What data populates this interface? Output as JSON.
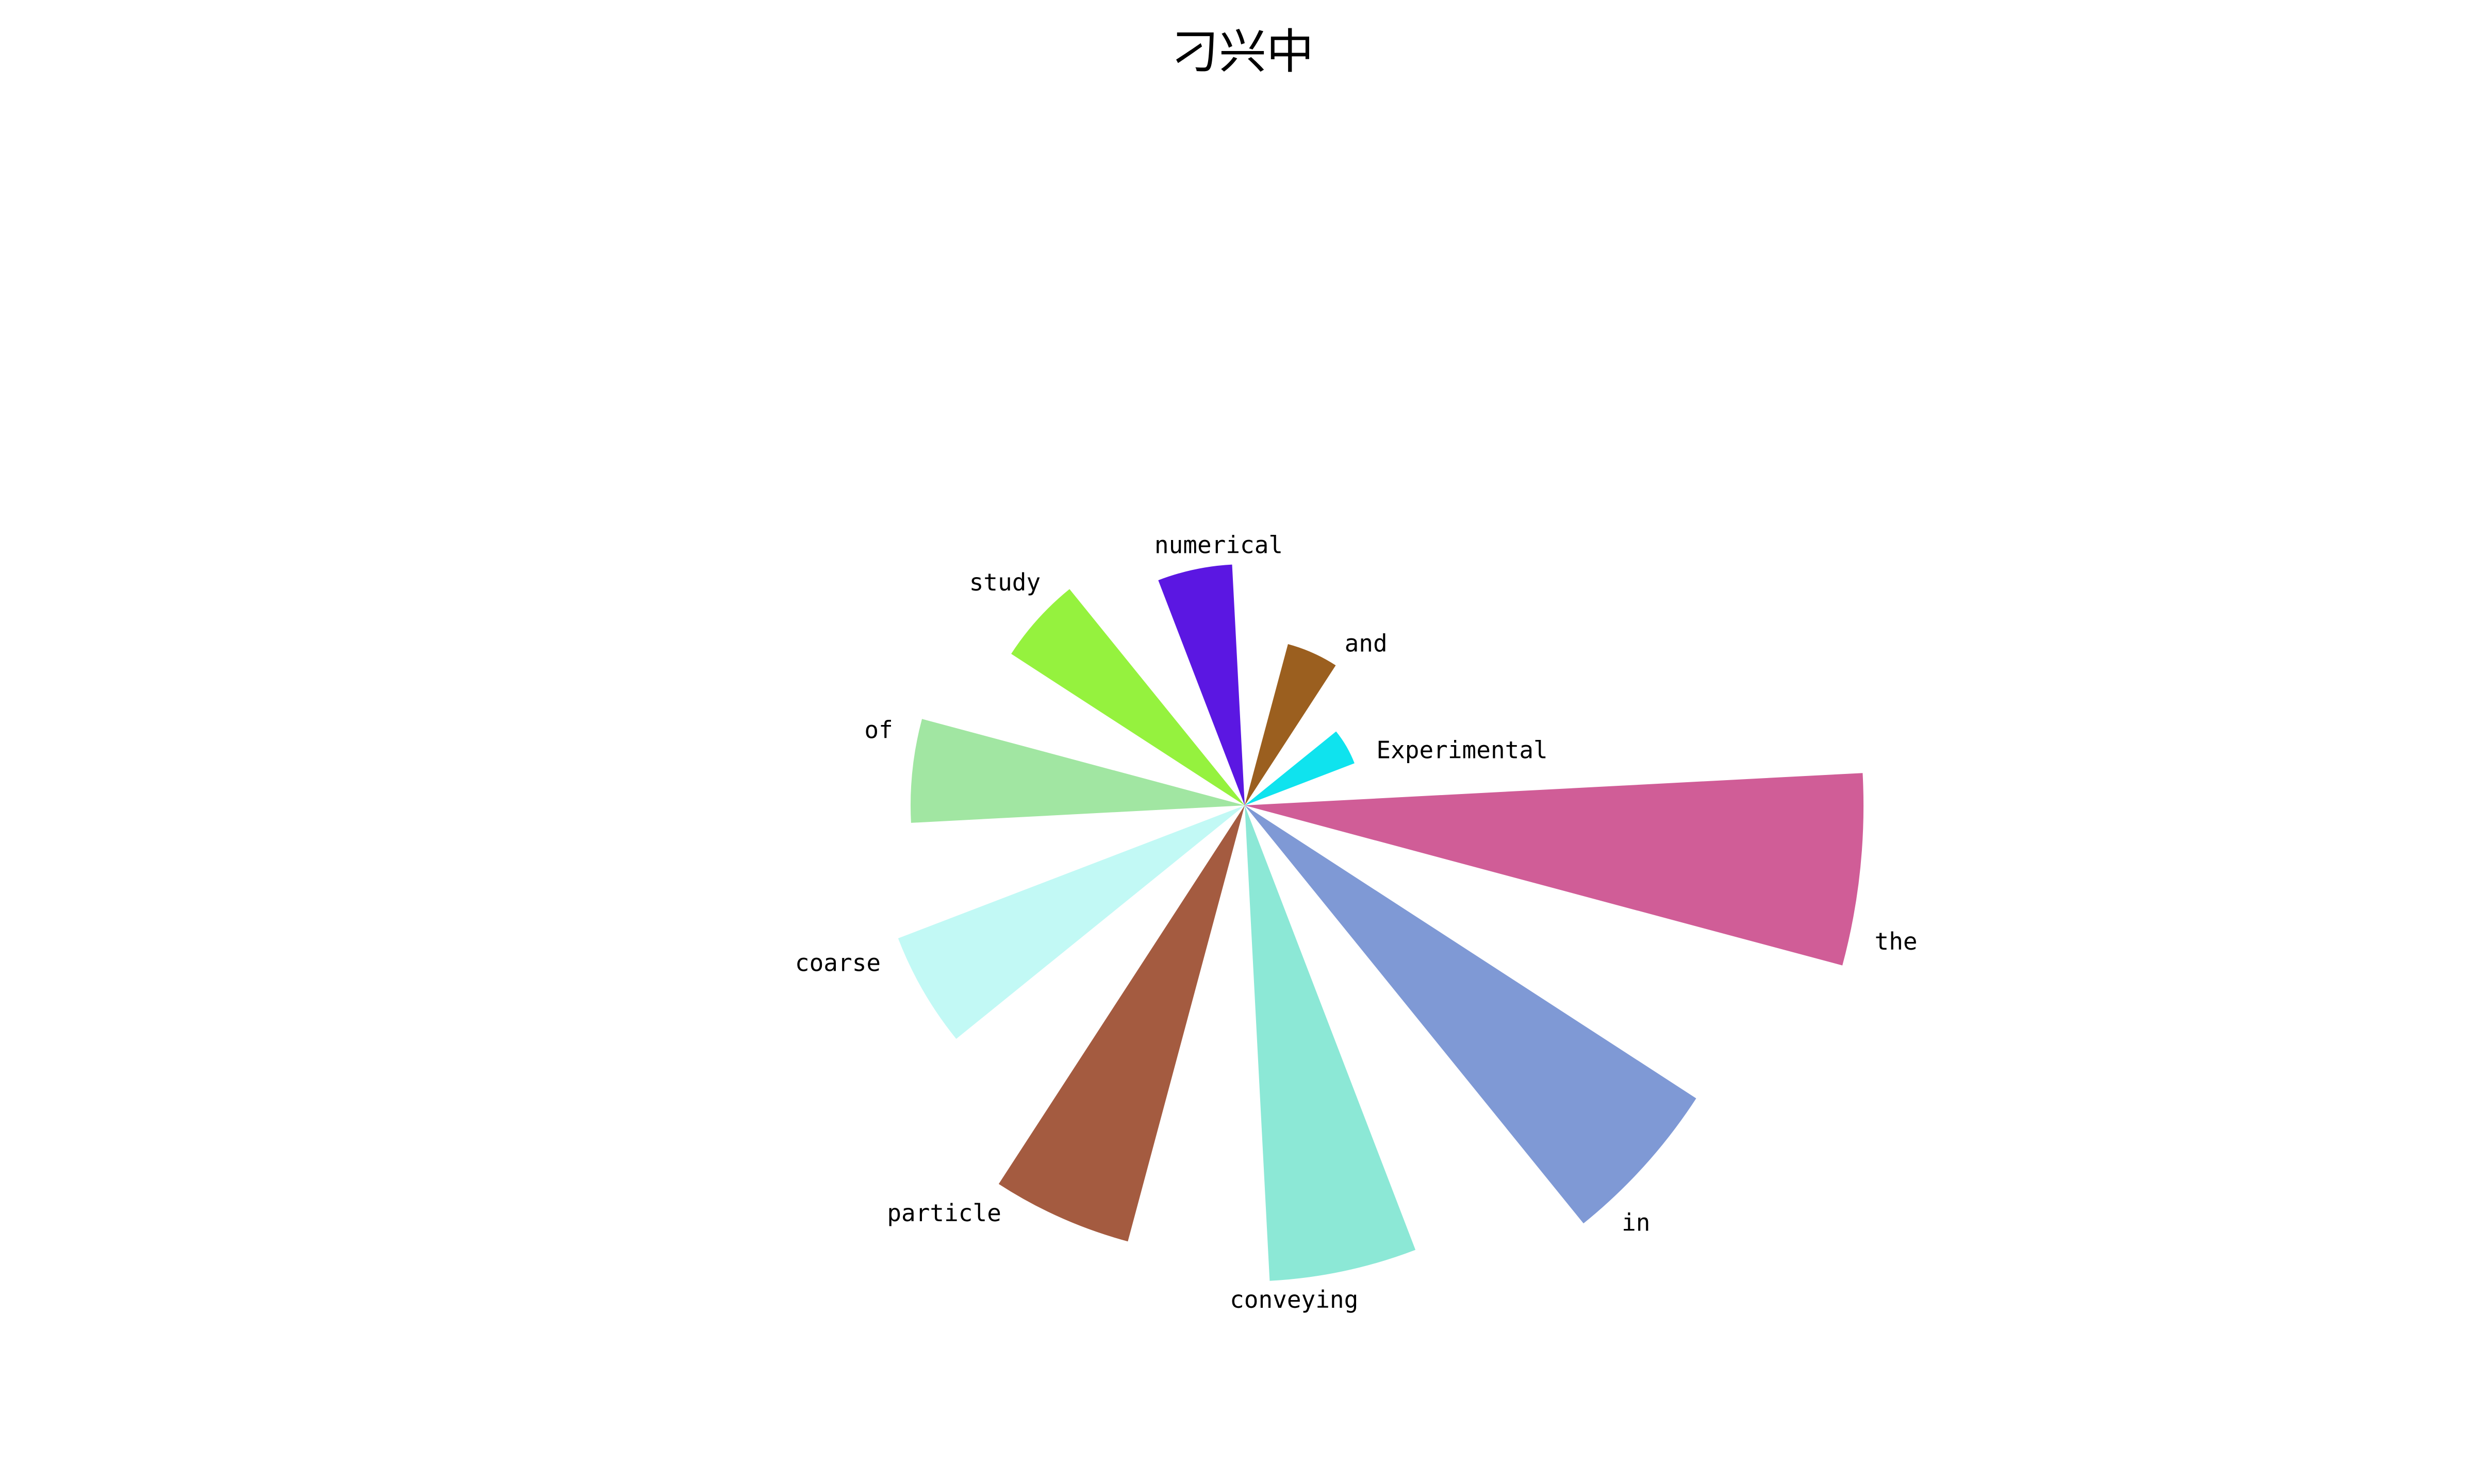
{
  "chart_data": {
    "type": "bar",
    "subtype": "polar-rose",
    "title": "刁兴中",
    "grid": false,
    "legend": "none",
    "rlim": [
      0,
      1.0
    ],
    "categories": [
      "Experimental",
      "and",
      "numerical",
      "study",
      "of",
      "coarse",
      "particle",
      "conveying",
      "in",
      "the"
    ],
    "values": [
      0.19,
      0.27,
      0.39,
      0.45,
      0.54,
      0.6,
      0.73,
      0.77,
      0.87,
      1.0
    ],
    "colors": [
      "#0fe3ee",
      "#9b5f1f",
      "#5b17e2",
      "#95f23e",
      "#a1e6a2",
      "#c2f9f5",
      "#a45b40",
      "#8ce8d6",
      "#7f99d5",
      "#d05d97"
    ]
  }
}
